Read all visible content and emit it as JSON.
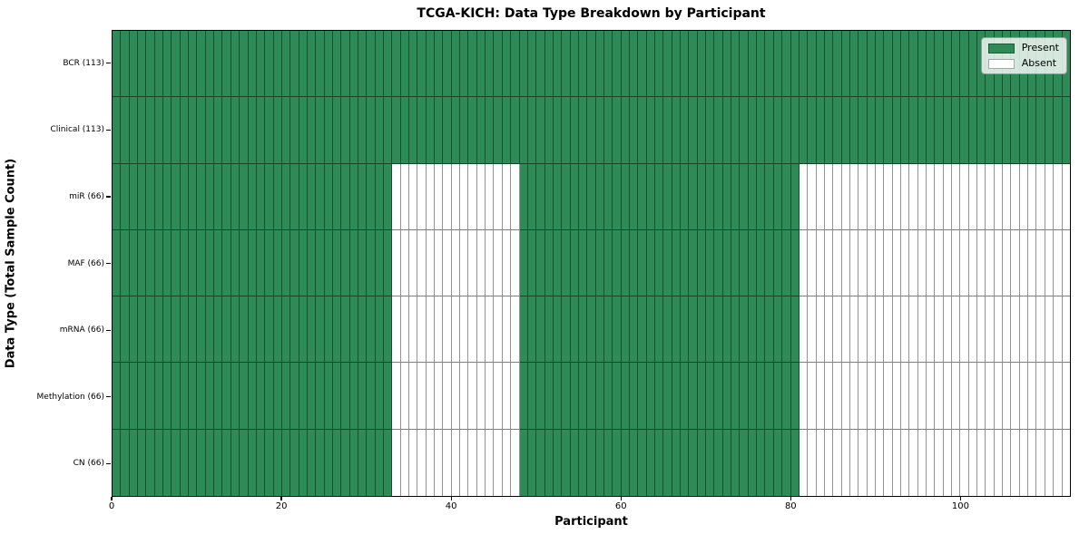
{
  "title": "TCGA-KICH: Data Type Breakdown by Participant",
  "legend": {
    "items": [
      {
        "label": "Present",
        "state": "present",
        "color": "#2e8b57"
      },
      {
        "label": "Absent",
        "state": "absent",
        "color": "#ffffff"
      }
    ]
  },
  "chart_data": {
    "type": "heatmap",
    "title": "TCGA-KICH: Data Type Breakdown by Participant",
    "xlabel": "Participant",
    "ylabel": "Data Type (Total Sample Count)",
    "x_ticks": [
      0,
      20,
      40,
      60,
      80,
      100
    ],
    "x_range": [
      0,
      113
    ],
    "n_participants": 113,
    "grid": "per-cell borders",
    "legend_position": "upper right",
    "legend_entries": [
      "Present",
      "Absent"
    ],
    "colors": {
      "present": "#2e8b57",
      "absent": "#ffffff",
      "cell_edge": "#000000"
    },
    "rows": [
      {
        "label": "BCR (113)",
        "total": 113,
        "present_ranges": [
          [
            0,
            113
          ]
        ]
      },
      {
        "label": "Clinical (113)",
        "total": 113,
        "present_ranges": [
          [
            0,
            113
          ]
        ]
      },
      {
        "label": "miR (66)",
        "total": 66,
        "present_ranges": [
          [
            0,
            33
          ],
          [
            48,
            81
          ]
        ]
      },
      {
        "label": "MAF (66)",
        "total": 66,
        "present_ranges": [
          [
            0,
            33
          ],
          [
            48,
            81
          ]
        ]
      },
      {
        "label": "mRNA (66)",
        "total": 66,
        "present_ranges": [
          [
            0,
            33
          ],
          [
            48,
            81
          ]
        ]
      },
      {
        "label": "Methylation (66)",
        "total": 66,
        "present_ranges": [
          [
            0,
            33
          ],
          [
            48,
            81
          ]
        ]
      },
      {
        "label": "CN (66)",
        "total": 66,
        "present_ranges": [
          [
            0,
            33
          ],
          [
            48,
            81
          ]
        ]
      }
    ]
  }
}
